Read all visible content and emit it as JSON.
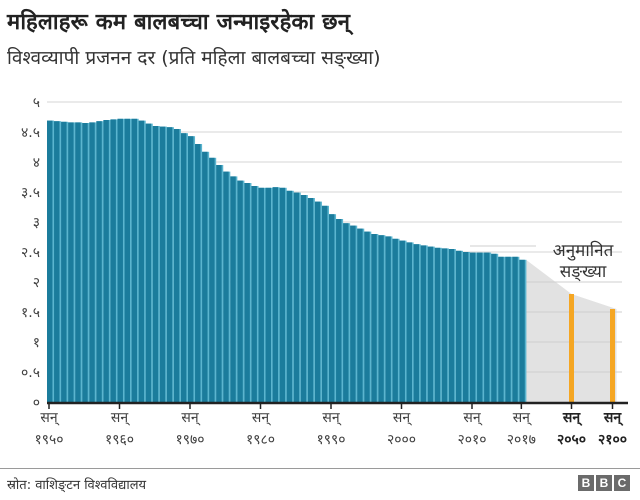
{
  "header": {
    "title": "महिलाहरू कम बालबच्चा जन्माइरहेका छन्",
    "subtitle": "विश्वव्यापी प्रजनन दर (प्रति महिला बालबच्चा सङ्ख्या)"
  },
  "annotation": {
    "line1": "अनुमानित",
    "line2": "सङ्ख्या"
  },
  "footer": {
    "source": "स्रोत: वाशिङ्टन विश्वविद्यालय",
    "logo_letters": [
      "B",
      "B",
      "C"
    ]
  },
  "colors": {
    "historical_bar": "#1b7c9c",
    "historical_gap": "#5bb5cf",
    "projection_bar": "#f5a623",
    "projection_area": "#e2e2e2",
    "grid": "#d6d6d6",
    "axis": "#222222"
  },
  "chart_data": {
    "type": "bar",
    "title": "महिलाहरू कम बालबच्चा जन्माइरहेका छन्",
    "subtitle": "विश्वव्यापी प्रजनन दर (प्रति महिला बालबच्चा सङ्ख्या)",
    "xlabel": "",
    "ylabel": "",
    "ylim": [
      0,
      5
    ],
    "yticks": [
      0,
      0.5,
      1,
      1.5,
      2,
      2.5,
      3,
      3.5,
      4,
      4.5,
      5
    ],
    "ytick_labels": [
      "०",
      "०.५",
      "१",
      "१.५",
      "२",
      "२.५",
      "३",
      "३.५",
      "४",
      "४.५",
      "५"
    ],
    "xtick_labels": [
      {
        "year": 1950,
        "line1": "सन्",
        "line2": "१९५०",
        "bold": false
      },
      {
        "year": 1960,
        "line1": "सन्",
        "line2": "१९६०",
        "bold": false
      },
      {
        "year": 1970,
        "line1": "सन्",
        "line2": "१९७०",
        "bold": false
      },
      {
        "year": 1980,
        "line1": "सन्",
        "line2": "१९८०",
        "bold": false
      },
      {
        "year": 1990,
        "line1": "सन्",
        "line2": "१९९०",
        "bold": false
      },
      {
        "year": 2000,
        "line1": "सन्",
        "line2": "२०००",
        "bold": false
      },
      {
        "year": 2010,
        "line1": "सन्",
        "line2": "२०१०",
        "bold": false
      },
      {
        "year": 2017,
        "line1": "सन्",
        "line2": "२०१७",
        "bold": false
      },
      {
        "year": 2050,
        "line1": "सन्",
        "line2": "२०५०",
        "bold": true
      },
      {
        "year": 2100,
        "line1": "सन्",
        "line2": "२१००",
        "bold": true
      }
    ],
    "grid": true,
    "legend": null,
    "annotations": [
      {
        "text": "अनुमानित सङ्ख्या",
        "target": "projection"
      }
    ],
    "series": [
      {
        "name": "historical",
        "x": [
          1950,
          1951,
          1952,
          1953,
          1954,
          1955,
          1956,
          1957,
          1958,
          1959,
          1960,
          1961,
          1962,
          1963,
          1964,
          1965,
          1966,
          1967,
          1968,
          1969,
          1970,
          1971,
          1972,
          1973,
          1974,
          1975,
          1976,
          1977,
          1978,
          1979,
          1980,
          1981,
          1982,
          1983,
          1984,
          1985,
          1986,
          1987,
          1988,
          1989,
          1990,
          1991,
          1992,
          1993,
          1994,
          1995,
          1996,
          1997,
          1998,
          1999,
          2000,
          2001,
          2002,
          2003,
          2004,
          2005,
          2006,
          2007,
          2008,
          2009,
          2010,
          2011,
          2012,
          2013,
          2014,
          2015,
          2016,
          2017
        ],
        "values": [
          4.69,
          4.68,
          4.67,
          4.66,
          4.66,
          4.65,
          4.66,
          4.68,
          4.7,
          4.71,
          4.72,
          4.72,
          4.72,
          4.69,
          4.64,
          4.6,
          4.59,
          4.58,
          4.55,
          4.48,
          4.43,
          4.3,
          4.17,
          4.07,
          3.95,
          3.84,
          3.76,
          3.69,
          3.65,
          3.6,
          3.57,
          3.57,
          3.58,
          3.57,
          3.52,
          3.49,
          3.45,
          3.4,
          3.34,
          3.27,
          3.13,
          3.05,
          2.98,
          2.94,
          2.89,
          2.84,
          2.8,
          2.78,
          2.76,
          2.72,
          2.69,
          2.66,
          2.63,
          2.61,
          2.59,
          2.57,
          2.56,
          2.55,
          2.52,
          2.5,
          2.49,
          2.49,
          2.49,
          2.47,
          2.42,
          2.42,
          2.42,
          2.37
        ]
      },
      {
        "name": "projection",
        "x": [
          2050,
          2100
        ],
        "values": [
          1.8,
          1.55
        ]
      }
    ]
  }
}
